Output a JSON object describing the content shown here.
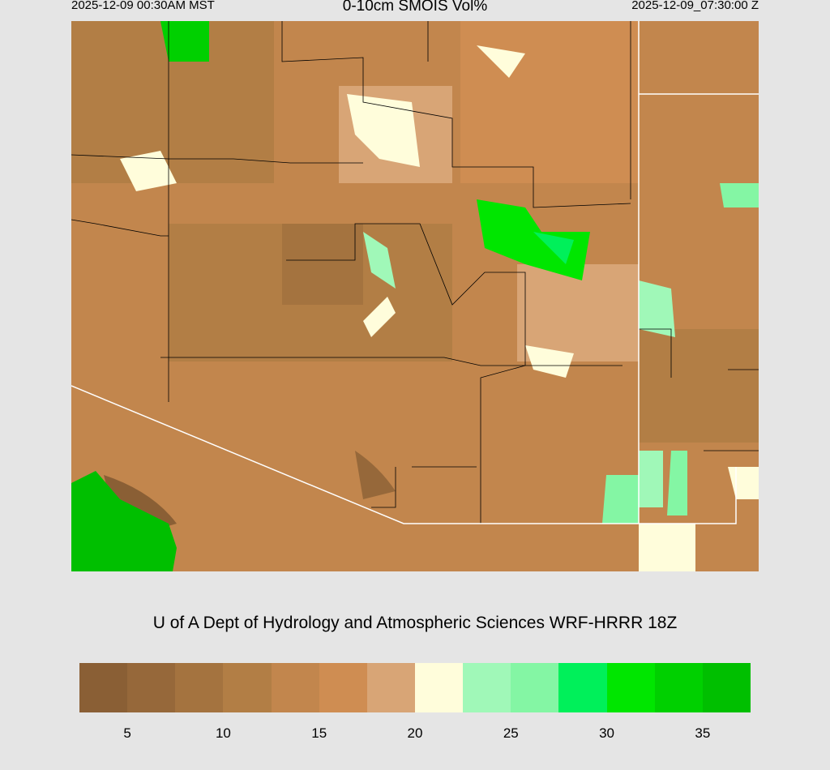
{
  "header": {
    "valid_local": "2025-12-09 00:30AM MST",
    "title": "0-10cm SMOIS Vol%",
    "valid_utc": "2025-12-09_07:30:00 Z"
  },
  "credit": "U of A Dept of Hydrology and Atmospheric Sciences WRF-HRRR 18Z",
  "map": {
    "field": "soil moisture",
    "background_color": "#c2864d",
    "state_line_color": "#000000",
    "border_color": "#ffffff",
    "road_color": "#a8a8b8"
  },
  "colorbar": {
    "colors": [
      "#8a5f35",
      "#96683a",
      "#a4733f",
      "#b27e45",
      "#c2864d",
      "#cf8d52",
      "#d8a576",
      "#fffddb",
      "#a0f8b8",
      "#84f6a4",
      "#00f05a",
      "#00e600",
      "#00d000",
      "#00bf00"
    ],
    "tick_labels": [
      "5",
      "10",
      "15",
      "20",
      "25",
      "30",
      "35"
    ]
  }
}
